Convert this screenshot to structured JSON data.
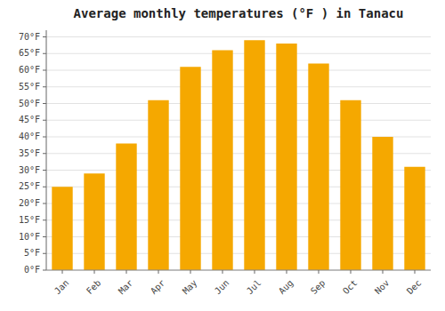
{
  "chart_data": {
    "type": "bar",
    "title": "Average monthly temperatures (°F ) in Tanacu",
    "categories": [
      "Jan",
      "Feb",
      "Mar",
      "Apr",
      "May",
      "Jun",
      "Jul",
      "Aug",
      "Sep",
      "Oct",
      "Nov",
      "Dec"
    ],
    "values": [
      25,
      29,
      38,
      51,
      61,
      66,
      69,
      68,
      62,
      51,
      40,
      31
    ],
    "color": "#F5A800",
    "ylim": [
      0,
      72
    ],
    "yticks": [
      {
        "value": 0,
        "label": "0°F"
      },
      {
        "value": 5,
        "label": "5°F"
      },
      {
        "value": 10,
        "label": "10°F"
      },
      {
        "value": 15,
        "label": "15°F"
      },
      {
        "value": 20,
        "label": "20°F"
      },
      {
        "value": 25,
        "label": "25°F"
      },
      {
        "value": 30,
        "label": "30°F"
      },
      {
        "value": 35,
        "label": "35°F"
      },
      {
        "value": 40,
        "label": "40°F"
      },
      {
        "value": 45,
        "label": "45°F"
      },
      {
        "value": 50,
        "label": "50°F"
      },
      {
        "value": 55,
        "label": "55°F"
      },
      {
        "value": 60,
        "label": "60°F"
      },
      {
        "value": 65,
        "label": "65°F"
      },
      {
        "value": 70,
        "label": "70°F"
      }
    ],
    "grid": true
  }
}
